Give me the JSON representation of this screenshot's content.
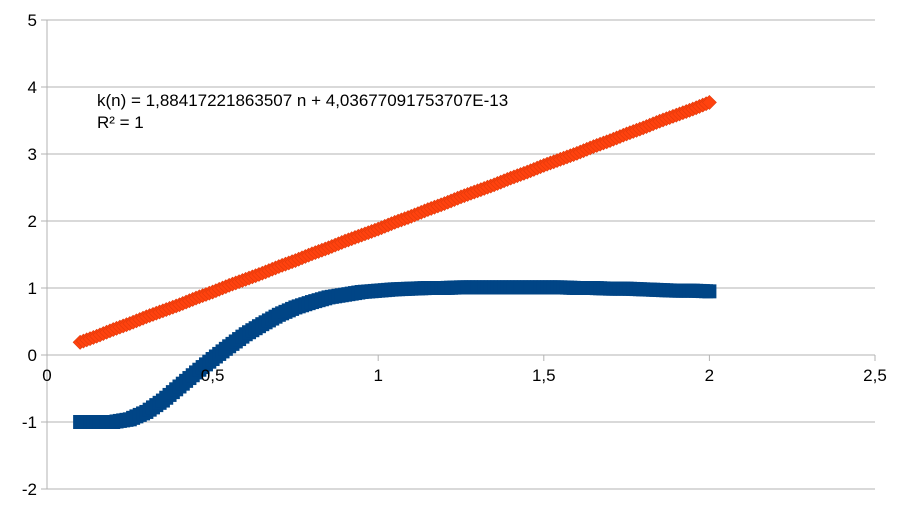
{
  "chart_data": {
    "type": "scatter",
    "xlim": [
      0,
      2.5
    ],
    "ylim": [
      -2,
      5
    ],
    "x_ticks": [
      "0",
      "0,5",
      "1",
      "1,5",
      "2",
      "2,5"
    ],
    "y_ticks": [
      "5",
      "4",
      "3",
      "2",
      "1",
      "0",
      "-1",
      "-2"
    ],
    "grid": true,
    "legend": "none",
    "annotation": {
      "line1": "k(n) = 1,88417221863507 n + 4,03677091753707E-13",
      "line2": "R² = 1"
    },
    "series": [
      {
        "color": "#ff420e",
        "marker": "diamond",
        "x": [
          0.1,
          0.15,
          0.2,
          0.25,
          0.3,
          0.35,
          0.4,
          0.45,
          0.5,
          0.55,
          0.6,
          0.65,
          0.7,
          0.75,
          0.8,
          0.85,
          0.9,
          0.95,
          1.0,
          1.05,
          1.1,
          1.15,
          1.2,
          1.25,
          1.3,
          1.35,
          1.4,
          1.45,
          1.5,
          1.55,
          1.6,
          1.65,
          1.7,
          1.75,
          1.8,
          1.85,
          1.9,
          1.95,
          2.0
        ],
        "y": [
          0.19,
          0.28,
          0.38,
          0.47,
          0.57,
          0.66,
          0.75,
          0.85,
          0.94,
          1.04,
          1.13,
          1.22,
          1.32,
          1.41,
          1.51,
          1.6,
          1.7,
          1.79,
          1.88,
          1.98,
          2.07,
          2.17,
          2.26,
          2.36,
          2.45,
          2.54,
          2.64,
          2.73,
          2.83,
          2.92,
          3.01,
          3.11,
          3.2,
          3.3,
          3.39,
          3.49,
          3.58,
          3.67,
          3.77
        ]
      },
      {
        "color": "#004586",
        "marker": "square",
        "x": [
          0.1,
          0.15,
          0.2,
          0.25,
          0.3,
          0.35,
          0.4,
          0.45,
          0.5,
          0.55,
          0.6,
          0.65,
          0.7,
          0.75,
          0.8,
          0.85,
          0.9,
          0.95,
          1.0,
          1.05,
          1.1,
          1.15,
          1.2,
          1.25,
          1.3,
          1.35,
          1.4,
          1.45,
          1.5,
          1.55,
          1.6,
          1.65,
          1.7,
          1.75,
          1.8,
          1.85,
          1.9,
          1.95,
          2.0
        ],
        "y": [
          -1.0,
          -1.0,
          -1.0,
          -0.96,
          -0.85,
          -0.68,
          -0.47,
          -0.26,
          -0.06,
          0.13,
          0.31,
          0.46,
          0.6,
          0.71,
          0.79,
          0.86,
          0.9,
          0.94,
          0.96,
          0.98,
          0.99,
          1.0,
          1.0,
          1.01,
          1.01,
          1.01,
          1.01,
          1.01,
          1.01,
          1.01,
          1.0,
          1.0,
          0.99,
          0.99,
          0.98,
          0.97,
          0.96,
          0.96,
          0.95
        ]
      }
    ]
  }
}
